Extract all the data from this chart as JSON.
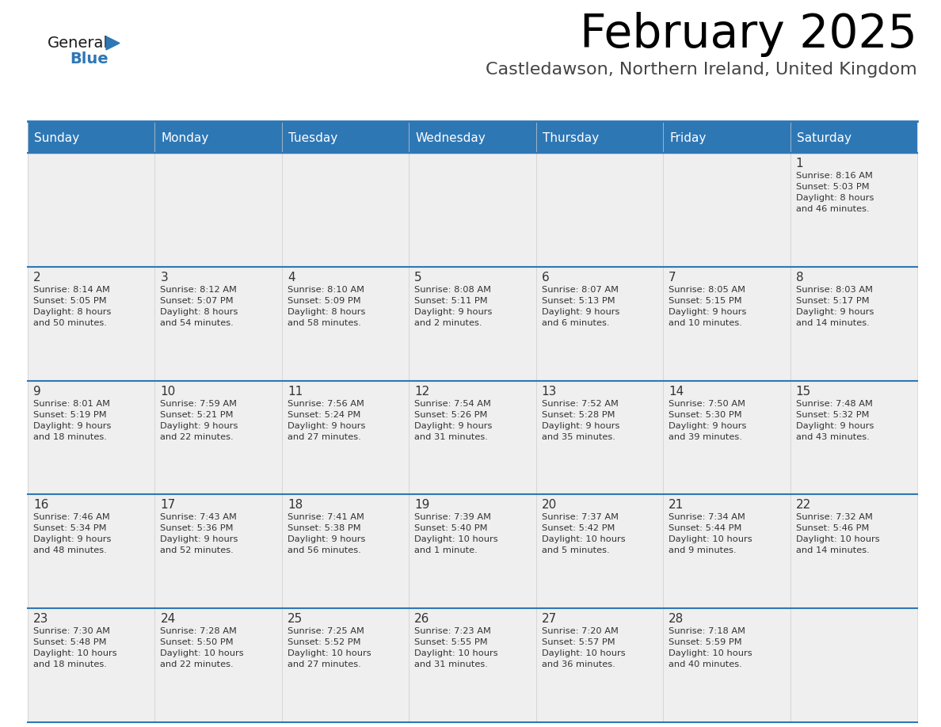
{
  "title": "February 2025",
  "subtitle": "Castledawson, Northern Ireland, United Kingdom",
  "header_bg": "#2E77B5",
  "header_text_color": "#FFFFFF",
  "cell_bg": "#EFEFEF",
  "cell_bg_white": "#FFFFFF",
  "border_color": "#2E77B5",
  "text_color": "#333333",
  "logo_general_color": "#1a1a1a",
  "logo_blue_color": "#2E77B5",
  "logo_triangle_color": "#2E77B5",
  "days_of_week": [
    "Sunday",
    "Monday",
    "Tuesday",
    "Wednesday",
    "Thursday",
    "Friday",
    "Saturday"
  ],
  "calendar_data": [
    [
      {
        "day": "",
        "info": ""
      },
      {
        "day": "",
        "info": ""
      },
      {
        "day": "",
        "info": ""
      },
      {
        "day": "",
        "info": ""
      },
      {
        "day": "",
        "info": ""
      },
      {
        "day": "",
        "info": ""
      },
      {
        "day": "1",
        "info": "Sunrise: 8:16 AM\nSunset: 5:03 PM\nDaylight: 8 hours\nand 46 minutes."
      }
    ],
    [
      {
        "day": "2",
        "info": "Sunrise: 8:14 AM\nSunset: 5:05 PM\nDaylight: 8 hours\nand 50 minutes."
      },
      {
        "day": "3",
        "info": "Sunrise: 8:12 AM\nSunset: 5:07 PM\nDaylight: 8 hours\nand 54 minutes."
      },
      {
        "day": "4",
        "info": "Sunrise: 8:10 AM\nSunset: 5:09 PM\nDaylight: 8 hours\nand 58 minutes."
      },
      {
        "day": "5",
        "info": "Sunrise: 8:08 AM\nSunset: 5:11 PM\nDaylight: 9 hours\nand 2 minutes."
      },
      {
        "day": "6",
        "info": "Sunrise: 8:07 AM\nSunset: 5:13 PM\nDaylight: 9 hours\nand 6 minutes."
      },
      {
        "day": "7",
        "info": "Sunrise: 8:05 AM\nSunset: 5:15 PM\nDaylight: 9 hours\nand 10 minutes."
      },
      {
        "day": "8",
        "info": "Sunrise: 8:03 AM\nSunset: 5:17 PM\nDaylight: 9 hours\nand 14 minutes."
      }
    ],
    [
      {
        "day": "9",
        "info": "Sunrise: 8:01 AM\nSunset: 5:19 PM\nDaylight: 9 hours\nand 18 minutes."
      },
      {
        "day": "10",
        "info": "Sunrise: 7:59 AM\nSunset: 5:21 PM\nDaylight: 9 hours\nand 22 minutes."
      },
      {
        "day": "11",
        "info": "Sunrise: 7:56 AM\nSunset: 5:24 PM\nDaylight: 9 hours\nand 27 minutes."
      },
      {
        "day": "12",
        "info": "Sunrise: 7:54 AM\nSunset: 5:26 PM\nDaylight: 9 hours\nand 31 minutes."
      },
      {
        "day": "13",
        "info": "Sunrise: 7:52 AM\nSunset: 5:28 PM\nDaylight: 9 hours\nand 35 minutes."
      },
      {
        "day": "14",
        "info": "Sunrise: 7:50 AM\nSunset: 5:30 PM\nDaylight: 9 hours\nand 39 minutes."
      },
      {
        "day": "15",
        "info": "Sunrise: 7:48 AM\nSunset: 5:32 PM\nDaylight: 9 hours\nand 43 minutes."
      }
    ],
    [
      {
        "day": "16",
        "info": "Sunrise: 7:46 AM\nSunset: 5:34 PM\nDaylight: 9 hours\nand 48 minutes."
      },
      {
        "day": "17",
        "info": "Sunrise: 7:43 AM\nSunset: 5:36 PM\nDaylight: 9 hours\nand 52 minutes."
      },
      {
        "day": "18",
        "info": "Sunrise: 7:41 AM\nSunset: 5:38 PM\nDaylight: 9 hours\nand 56 minutes."
      },
      {
        "day": "19",
        "info": "Sunrise: 7:39 AM\nSunset: 5:40 PM\nDaylight: 10 hours\nand 1 minute."
      },
      {
        "day": "20",
        "info": "Sunrise: 7:37 AM\nSunset: 5:42 PM\nDaylight: 10 hours\nand 5 minutes."
      },
      {
        "day": "21",
        "info": "Sunrise: 7:34 AM\nSunset: 5:44 PM\nDaylight: 10 hours\nand 9 minutes."
      },
      {
        "day": "22",
        "info": "Sunrise: 7:32 AM\nSunset: 5:46 PM\nDaylight: 10 hours\nand 14 minutes."
      }
    ],
    [
      {
        "day": "23",
        "info": "Sunrise: 7:30 AM\nSunset: 5:48 PM\nDaylight: 10 hours\nand 18 minutes."
      },
      {
        "day": "24",
        "info": "Sunrise: 7:28 AM\nSunset: 5:50 PM\nDaylight: 10 hours\nand 22 minutes."
      },
      {
        "day": "25",
        "info": "Sunrise: 7:25 AM\nSunset: 5:52 PM\nDaylight: 10 hours\nand 27 minutes."
      },
      {
        "day": "26",
        "info": "Sunrise: 7:23 AM\nSunset: 5:55 PM\nDaylight: 10 hours\nand 31 minutes."
      },
      {
        "day": "27",
        "info": "Sunrise: 7:20 AM\nSunset: 5:57 PM\nDaylight: 10 hours\nand 36 minutes."
      },
      {
        "day": "28",
        "info": "Sunrise: 7:18 AM\nSunset: 5:59 PM\nDaylight: 10 hours\nand 40 minutes."
      },
      {
        "day": "",
        "info": ""
      }
    ]
  ]
}
